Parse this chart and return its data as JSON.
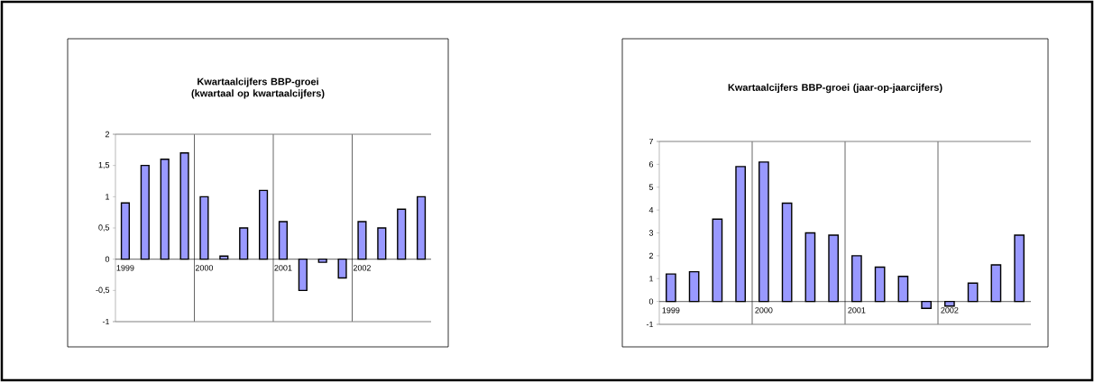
{
  "chart_data": [
    {
      "type": "bar",
      "title": "Kwartaalcijfers BBP-groei (kwartaal op kwartaalcijfers)",
      "categories": [
        "1999",
        null,
        null,
        null,
        "2000",
        null,
        null,
        null,
        "2001",
        null,
        null,
        null,
        "2002",
        null,
        null,
        null
      ],
      "values": [
        0.9,
        1.5,
        1.6,
        1.7,
        1.0,
        0.05,
        0.5,
        1.1,
        0.6,
        -0.5,
        -0.05,
        -0.3,
        0.6,
        0.5,
        0.8,
        1.0
      ],
      "color": "#9999ff",
      "ylim": [
        -1,
        2
      ],
      "yticks": [
        -1,
        {
          "value": -0.5,
          "label": "-0,5"
        },
        0,
        {
          "value": 0.5,
          "label": "0,5"
        },
        1,
        {
          "value": 1.5,
          "label": "1,5"
        },
        2
      ],
      "grid": "x"
    },
    {
      "type": "bar",
      "title": "Kwartaalcijfers BBP-groei (jaar-op-jaarcijfers)",
      "categories": [
        "1999",
        null,
        null,
        null,
        "2000",
        null,
        null,
        null,
        "2001",
        null,
        null,
        null,
        "2002",
        null,
        null,
        null
      ],
      "values": [
        1.2,
        1.3,
        3.6,
        5.9,
        6.1,
        4.3,
        3.0,
        2.9,
        2.0,
        1.5,
        1.1,
        -0.3,
        -0.2,
        0.8,
        1.6,
        2.9
      ],
      "color": "#9999ff",
      "ylim": [
        -1,
        7
      ],
      "yticks": [
        -1,
        0,
        1,
        2,
        3,
        4,
        5,
        6,
        7
      ],
      "grid": "x"
    }
  ]
}
